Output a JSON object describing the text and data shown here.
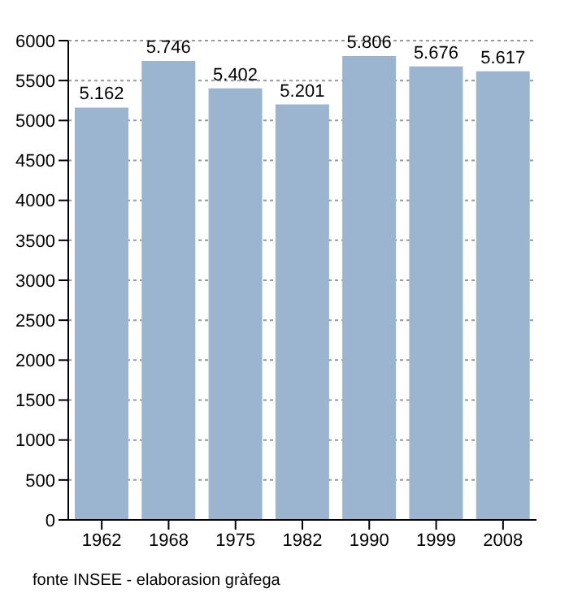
{
  "chart_data": {
    "type": "bar",
    "categories": [
      "1962",
      "1968",
      "1975",
      "1982",
      "1990",
      "1999",
      "2008"
    ],
    "values": [
      5162,
      5746,
      5402,
      5201,
      5806,
      5676,
      5617
    ],
    "value_labels": [
      "5.162",
      "5.746",
      "5.402",
      "5.201",
      "5.806",
      "5.676",
      "5.617"
    ],
    "color": "#9bb4cf",
    "ylim": [
      0,
      6000
    ],
    "yticks": [
      0,
      500,
      1000,
      1500,
      2000,
      2500,
      3000,
      3500,
      4000,
      4500,
      5000,
      5500,
      6000
    ],
    "grid": "y",
    "annotations": [
      "fonte INSEE - elaborasion gràfega"
    ]
  }
}
